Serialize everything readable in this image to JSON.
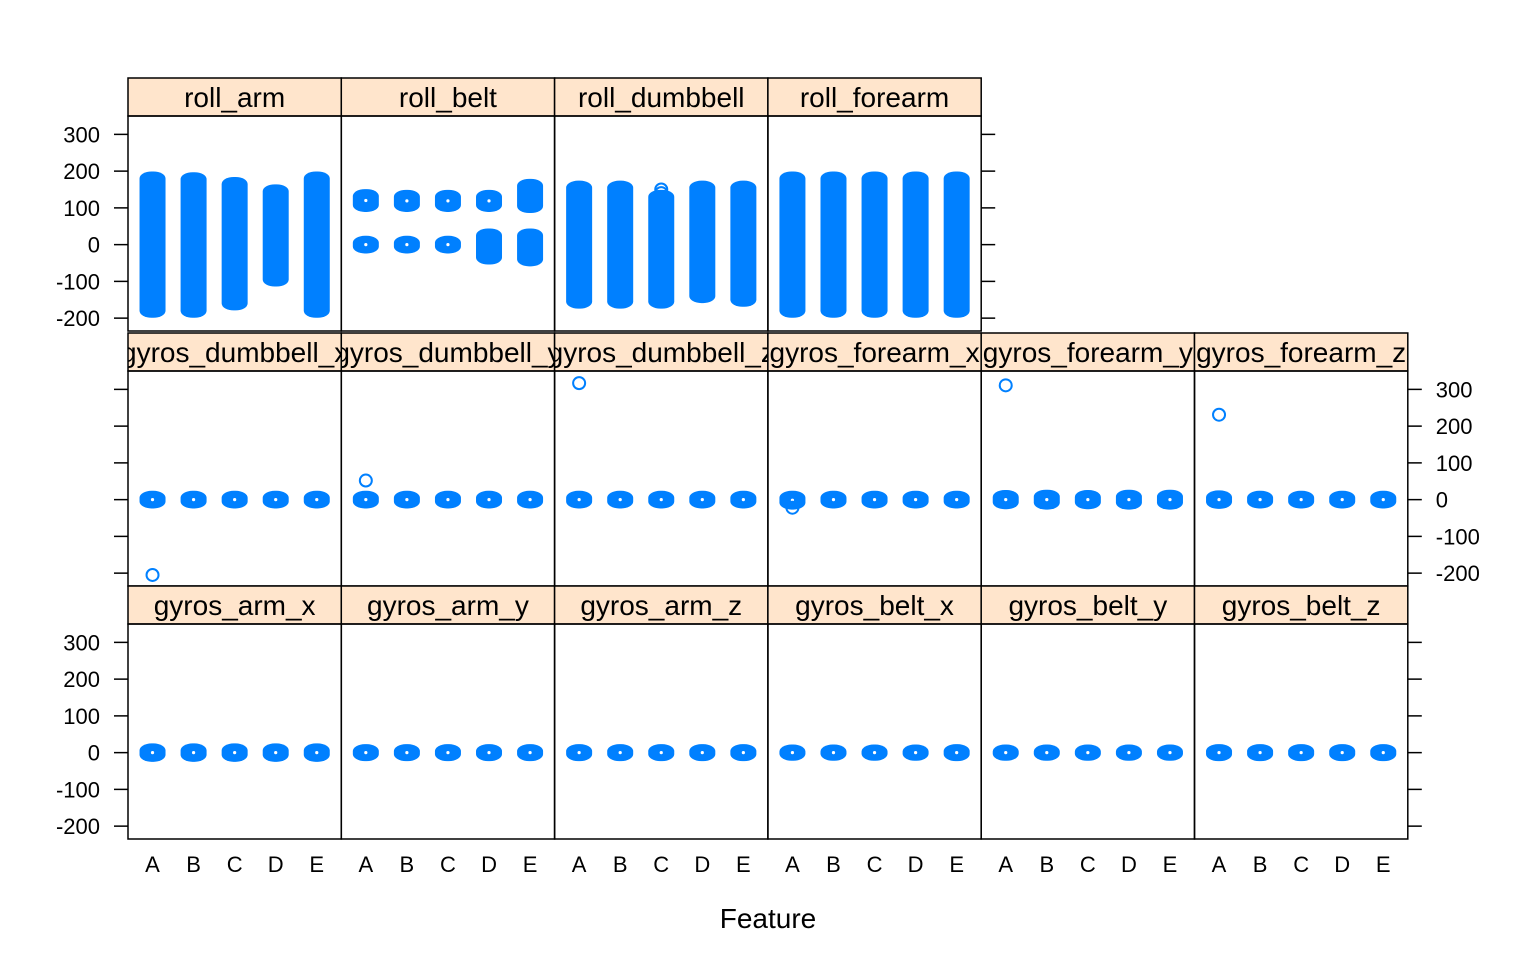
{
  "chart_data": {
    "type": "scatter",
    "xlabel": "Feature",
    "ylabel": "",
    "ylim": [
      -235,
      350
    ],
    "y_ticks": [
      -200,
      -100,
      0,
      100,
      200,
      300
    ],
    "y_tick_labels": [
      "-200",
      "-100",
      "0",
      "100",
      "200",
      "300"
    ],
    "categories": [
      "A",
      "B",
      "C",
      "D",
      "E"
    ],
    "point_color": "#0080ff",
    "strip_color": "#ffe5cc",
    "layout": "3 rows x 6 columns (top row has 4 panels)",
    "panels": [
      {
        "name": "roll_arm",
        "row": 0,
        "col": 0,
        "ranges": [
          [
            -180,
            180
          ],
          [
            -180,
            178
          ],
          [
            -160,
            165
          ],
          [
            -95,
            145
          ],
          [
            -180,
            180
          ]
        ],
        "points": []
      },
      {
        "name": "roll_belt",
        "row": 0,
        "col": 1,
        "ranges": [
          [
            -5,
            5,
            108,
            132
          ],
          [
            -5,
            5,
            108,
            130
          ],
          [
            -5,
            5,
            108,
            130
          ],
          [
            -35,
            25,
            108,
            130
          ],
          [
            -40,
            25,
            105,
            160
          ]
        ],
        "points": []
      },
      {
        "name": "roll_dumbbell",
        "row": 0,
        "col": 2,
        "ranges": [
          [
            -155,
            155
          ],
          [
            -155,
            155
          ],
          [
            -155,
            130
          ],
          [
            -140,
            155
          ],
          [
            -150,
            155
          ]
        ],
        "points": [
          {
            "x": "C",
            "y": 150
          },
          {
            "x": "C",
            "y": 140
          }
        ]
      },
      {
        "name": "roll_forearm",
        "row": 0,
        "col": 3,
        "ranges": [
          [
            -180,
            180
          ],
          [
            -180,
            180
          ],
          [
            -180,
            180
          ],
          [
            -180,
            180
          ],
          [
            -180,
            180
          ]
        ],
        "points": []
      },
      {
        "name": "gyros_dumbbell_x",
        "row": 1,
        "col": 0,
        "label": "gyros_dumbbell_x",
        "ranges": [
          [
            -5,
            5
          ],
          [
            -5,
            5
          ],
          [
            -5,
            5
          ],
          [
            -5,
            5
          ],
          [
            -5,
            5
          ]
        ],
        "points": [
          {
            "x": "A",
            "y": -205
          }
        ]
      },
      {
        "name": "gyros_dumbbell_y",
        "row": 1,
        "col": 1,
        "label": "gyros_dumbbell_y",
        "ranges": [
          [
            -5,
            5
          ],
          [
            -5,
            5
          ],
          [
            -5,
            5
          ],
          [
            -5,
            5
          ],
          [
            -5,
            5
          ]
        ],
        "points": [
          {
            "x": "A",
            "y": 52
          }
        ]
      },
      {
        "name": "gyros_dumbbell_z",
        "row": 1,
        "col": 2,
        "label": "gyros_dumbbell_z",
        "ranges": [
          [
            -5,
            5
          ],
          [
            -5,
            5
          ],
          [
            -5,
            5
          ],
          [
            -5,
            5
          ],
          [
            -5,
            5
          ]
        ],
        "points": [
          {
            "x": "A",
            "y": 317
          }
        ]
      },
      {
        "name": "gyros_forearm_x",
        "row": 1,
        "col": 3,
        "label": "gyros_forearm_x",
        "ranges": [
          [
            -8,
            5
          ],
          [
            -5,
            5
          ],
          [
            -5,
            5
          ],
          [
            -5,
            5
          ],
          [
            -5,
            5
          ]
        ],
        "points": [
          {
            "x": "A",
            "y": -22
          }
        ]
      },
      {
        "name": "gyros_forearm_y",
        "row": 1,
        "col": 4,
        "label": "gyros_forearm_y",
        "ranges": [
          [
            -7,
            7
          ],
          [
            -8,
            8
          ],
          [
            -7,
            7
          ],
          [
            -8,
            8
          ],
          [
            -8,
            8
          ]
        ],
        "points": [
          {
            "x": "A",
            "y": 311
          }
        ]
      },
      {
        "name": "gyros_forearm_z",
        "row": 1,
        "col": 5,
        "label": "gyros_forearm_z",
        "ranges": [
          [
            -6,
            6
          ],
          [
            -5,
            5
          ],
          [
            -5,
            5
          ],
          [
            -5,
            5
          ],
          [
            -5,
            5
          ]
        ],
        "points": [
          {
            "x": "A",
            "y": 231
          }
        ]
      },
      {
        "name": "gyros_arm_x",
        "row": 2,
        "col": 0,
        "ranges": [
          [
            -6,
            6
          ],
          [
            -6,
            6
          ],
          [
            -6,
            6
          ],
          [
            -6,
            6
          ],
          [
            -6,
            6
          ]
        ],
        "points": []
      },
      {
        "name": "gyros_arm_y",
        "row": 2,
        "col": 1,
        "ranges": [
          [
            -4,
            4
          ],
          [
            -4,
            4
          ],
          [
            -4,
            4
          ],
          [
            -4,
            4
          ],
          [
            -4,
            4
          ]
        ],
        "points": []
      },
      {
        "name": "gyros_arm_z",
        "row": 2,
        "col": 2,
        "ranges": [
          [
            -4,
            4
          ],
          [
            -4,
            4
          ],
          [
            -4,
            4
          ],
          [
            -4,
            4
          ],
          [
            -4,
            4
          ]
        ],
        "points": []
      },
      {
        "name": "gyros_belt_x",
        "row": 2,
        "col": 3,
        "ranges": [
          [
            -3,
            3
          ],
          [
            -3,
            3
          ],
          [
            -3,
            3
          ],
          [
            -3,
            3
          ],
          [
            -4,
            4
          ]
        ],
        "points": []
      },
      {
        "name": "gyros_belt_y",
        "row": 2,
        "col": 4,
        "ranges": [
          [
            -3,
            3
          ],
          [
            -3,
            3
          ],
          [
            -3,
            3
          ],
          [
            -3,
            3
          ],
          [
            -3,
            3
          ]
        ],
        "points": []
      },
      {
        "name": "gyros_belt_z",
        "row": 2,
        "col": 5,
        "ranges": [
          [
            -4,
            4
          ],
          [
            -4,
            4
          ],
          [
            -4,
            4
          ],
          [
            -4,
            4
          ],
          [
            -4,
            4
          ]
        ],
        "points": []
      }
    ]
  }
}
